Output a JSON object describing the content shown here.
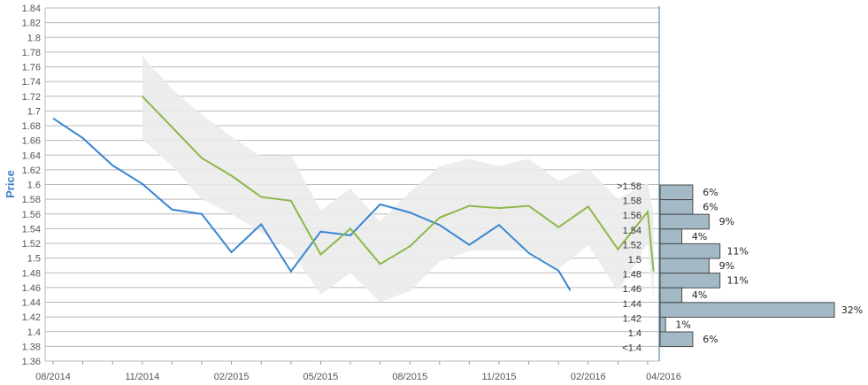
{
  "chart_data": {
    "type": "line",
    "ylabel": "Price",
    "ylim": [
      1.36,
      1.84
    ],
    "y_ticks": [
      "1.36",
      "1.38",
      "1.4",
      "1.42",
      "1.44",
      "1.46",
      "1.48",
      "1.5",
      "1.52",
      "1.54",
      "1.56",
      "1.58",
      "1.6",
      "1.62",
      "1.64",
      "1.66",
      "1.68",
      "1.7",
      "1.72",
      "1.74",
      "1.76",
      "1.78",
      "1.8",
      "1.82",
      "1.84"
    ],
    "x_tick_labels": [
      "08/2014",
      "11/2014",
      "02/2015",
      "05/2015",
      "08/2015",
      "11/2015",
      "02/2016",
      "04/2016"
    ],
    "x_tick_month_index": [
      0,
      3,
      6,
      9,
      12,
      15,
      18,
      20
    ],
    "grid": true,
    "colors": {
      "actual": "#3a86d2",
      "forecast": "#8db84a",
      "band": "#ebebeb",
      "hist_bar": "#a3b9c6",
      "hist_border": "#4a4a4a",
      "grid": "#b8b8b8",
      "axis": "#5a8fa8",
      "ylabel": "#3b7fc4"
    },
    "series": [
      {
        "key": "actual",
        "month_index": [
          0,
          1,
          2,
          3,
          4,
          5,
          6,
          7,
          8,
          9,
          10,
          11,
          12,
          13,
          14,
          15,
          16,
          17,
          17.4
        ],
        "values": [
          1.69,
          1.663,
          1.626,
          1.601,
          1.566,
          1.56,
          1.508,
          1.546,
          1.482,
          1.536,
          1.531,
          1.573,
          1.562,
          1.545,
          1.518,
          1.545,
          1.507,
          1.483,
          1.456
        ]
      },
      {
        "key": "forecast",
        "month_index": [
          3,
          4,
          5,
          6,
          7,
          8,
          9,
          10,
          11,
          12,
          13,
          14,
          15,
          16,
          17,
          18,
          19,
          20,
          20.2
        ],
        "values": [
          1.72,
          1.678,
          1.636,
          1.612,
          1.583,
          1.578,
          1.505,
          1.54,
          1.492,
          1.516,
          1.555,
          1.571,
          1.568,
          1.571,
          1.542,
          1.57,
          1.512,
          1.563,
          1.482
        ]
      }
    ],
    "band": {
      "month_index": [
        3,
        4,
        5,
        6,
        7,
        8,
        9,
        10,
        11,
        12,
        13,
        14,
        15,
        16,
        17,
        18,
        19,
        20,
        20.2
      ],
      "upper": [
        1.775,
        1.73,
        1.695,
        1.665,
        1.638,
        1.64,
        1.565,
        1.595,
        1.55,
        1.59,
        1.625,
        1.635,
        1.625,
        1.635,
        1.605,
        1.622,
        1.58,
        1.602,
        1.56
      ],
      "lower": [
        1.662,
        1.625,
        1.58,
        1.56,
        1.535,
        1.51,
        1.45,
        1.48,
        1.44,
        1.455,
        1.495,
        1.51,
        1.51,
        1.51,
        1.485,
        1.518,
        1.455,
        1.52,
        1.44
      ]
    },
    "histogram": {
      "bins": [
        ">1.58",
        "1.58",
        "1.56",
        "1.54",
        "1.52",
        "1.5",
        "1.48",
        "1.46",
        "1.44",
        "1.42",
        "1.4",
        "<1.4"
      ],
      "percent": [
        6,
        6,
        9,
        4,
        11,
        9,
        11,
        4,
        32,
        1,
        6
      ],
      "labels": [
        "6%",
        "6%",
        "9%",
        "4%",
        "11%",
        "9%",
        "11%",
        "4%",
        "32%",
        "1%",
        "6%"
      ]
    }
  }
}
